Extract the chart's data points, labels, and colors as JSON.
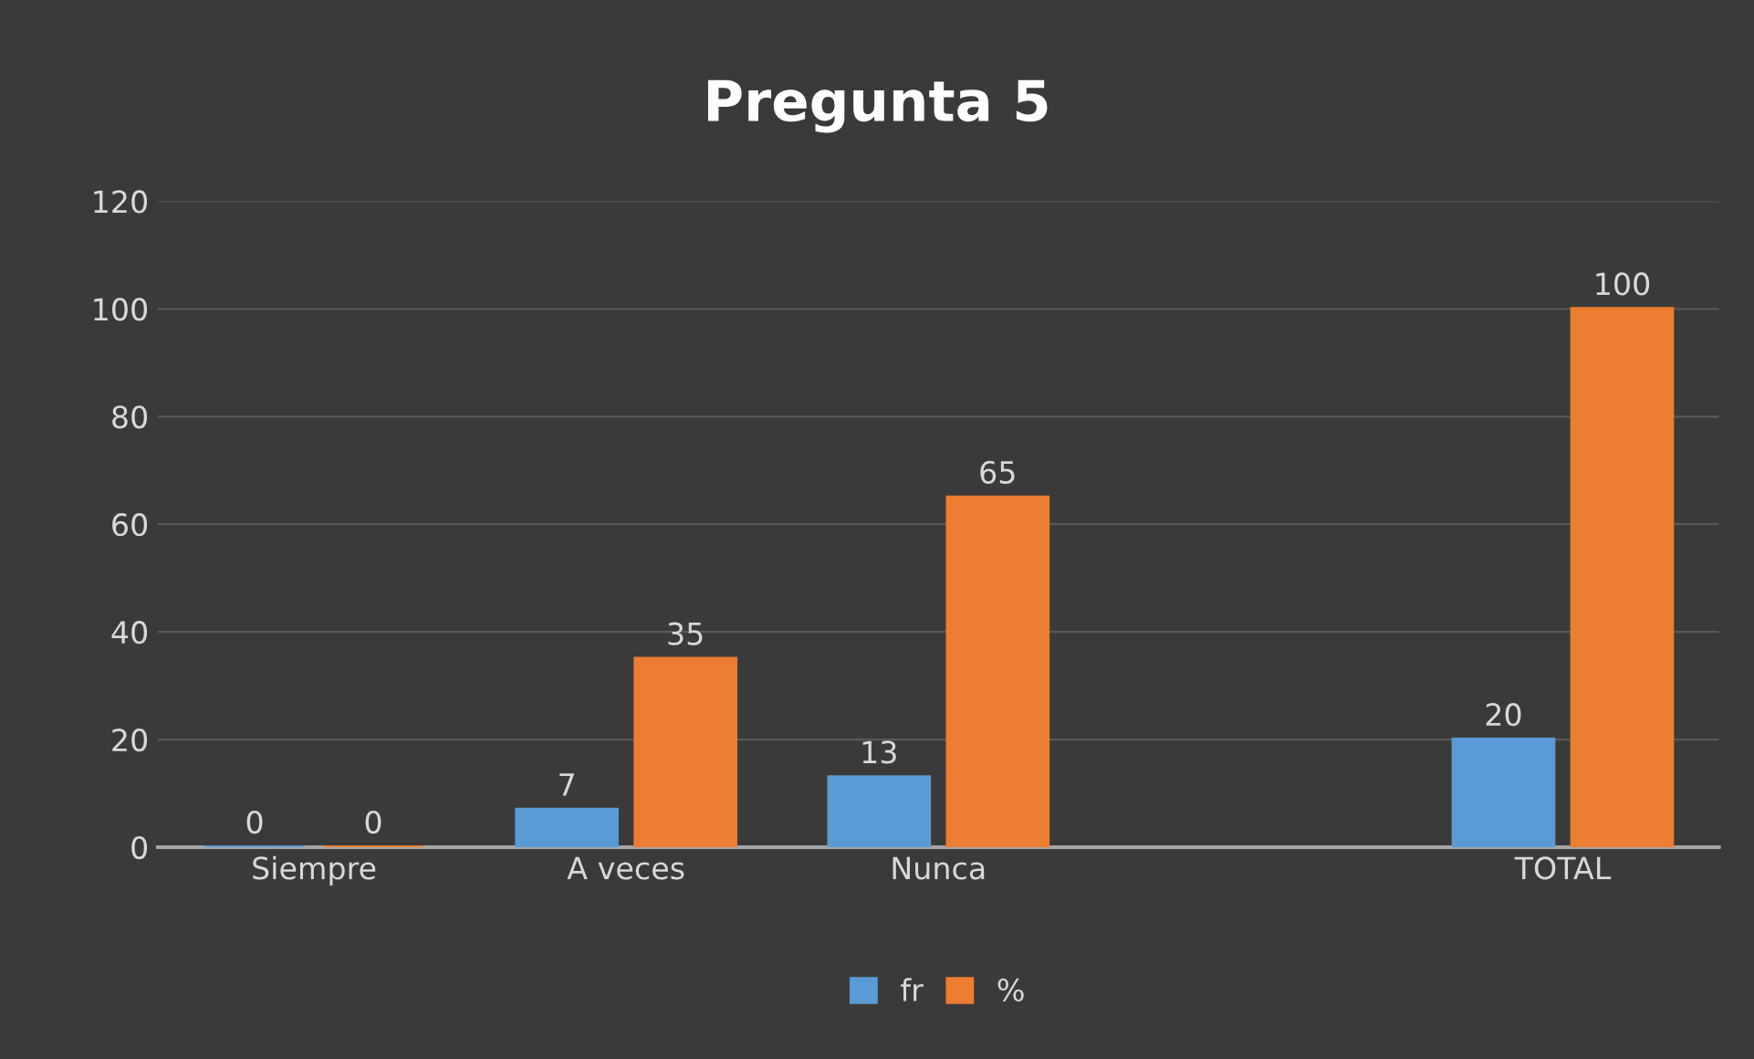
{
  "chart_data": {
    "type": "bar",
    "title": "Pregunta 5",
    "categories": [
      "Siempre",
      "A veces",
      "Nunca",
      null,
      "TOTAL"
    ],
    "series": [
      {
        "name": "fr",
        "color": "#5b9bd5",
        "values": [
          0,
          7,
          13,
          null,
          20
        ]
      },
      {
        "name": "%",
        "color": "#ed7d31",
        "values": [
          0,
          35,
          65,
          null,
          100
        ]
      }
    ],
    "ylim": [
      0,
      120
    ],
    "yticks": [
      0,
      20,
      40,
      60,
      80,
      100,
      120
    ],
    "grid": "y",
    "legend": "bottom",
    "data_labels": true
  }
}
